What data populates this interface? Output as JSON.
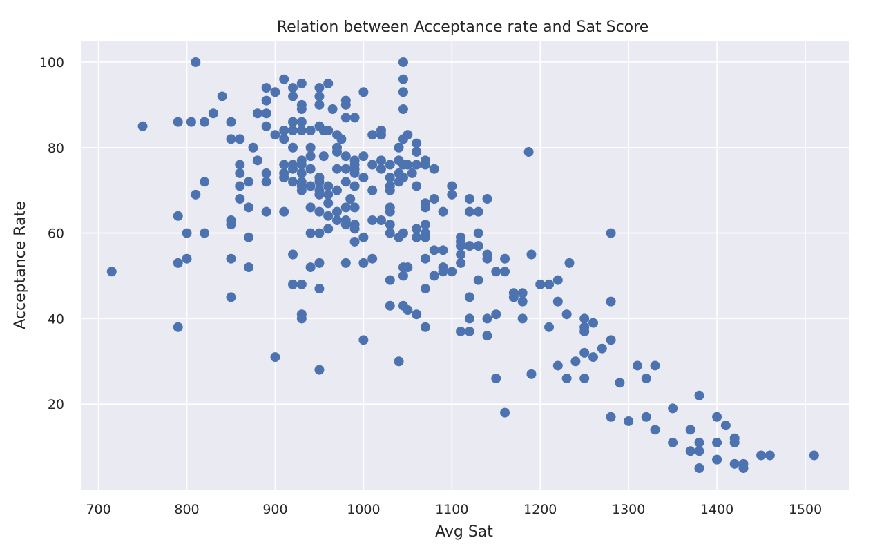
{
  "chart_data": {
    "type": "scatter",
    "title": "Relation between Acceptance rate and Sat Score",
    "xlabel": "Avg Sat",
    "ylabel": "Acceptance Rate",
    "xlim": [
      680,
      1550
    ],
    "ylim": [
      0,
      105
    ],
    "xticks": [
      700,
      800,
      900,
      1000,
      1100,
      1200,
      1300,
      1400,
      1500
    ],
    "yticks": [
      20,
      40,
      60,
      80,
      100
    ],
    "grid": true,
    "background": "#eaeaf2",
    "point_color": "#4c72b0",
    "points": [
      [
        715,
        51
      ],
      [
        750,
        85
      ],
      [
        790,
        86
      ],
      [
        790,
        64
      ],
      [
        790,
        53
      ],
      [
        790,
        38
      ],
      [
        800,
        60
      ],
      [
        800,
        54
      ],
      [
        805,
        86
      ],
      [
        810,
        100
      ],
      [
        810,
        69
      ],
      [
        820,
        86
      ],
      [
        820,
        72
      ],
      [
        820,
        60
      ],
      [
        830,
        88
      ],
      [
        840,
        92
      ],
      [
        850,
        86
      ],
      [
        850,
        82
      ],
      [
        850,
        63
      ],
      [
        850,
        62
      ],
      [
        850,
        54
      ],
      [
        850,
        45
      ],
      [
        860,
        82
      ],
      [
        860,
        76
      ],
      [
        860,
        74
      ],
      [
        860,
        71
      ],
      [
        860,
        68
      ],
      [
        870,
        72
      ],
      [
        870,
        66
      ],
      [
        870,
        59
      ],
      [
        870,
        52
      ],
      [
        875,
        80
      ],
      [
        880,
        88
      ],
      [
        880,
        77
      ],
      [
        890,
        94
      ],
      [
        890,
        91
      ],
      [
        890,
        88
      ],
      [
        890,
        85
      ],
      [
        890,
        74
      ],
      [
        890,
        72
      ],
      [
        890,
        65
      ],
      [
        900,
        93
      ],
      [
        900,
        83
      ],
      [
        900,
        31
      ],
      [
        910,
        96
      ],
      [
        910,
        84
      ],
      [
        910,
        82
      ],
      [
        910,
        76
      ],
      [
        910,
        74
      ],
      [
        910,
        73
      ],
      [
        910,
        65
      ],
      [
        920,
        94
      ],
      [
        920,
        92
      ],
      [
        920,
        86
      ],
      [
        920,
        84
      ],
      [
        920,
        80
      ],
      [
        920,
        76
      ],
      [
        920,
        75
      ],
      [
        920,
        72
      ],
      [
        920,
        55
      ],
      [
        920,
        48
      ],
      [
        930,
        95
      ],
      [
        930,
        90
      ],
      [
        930,
        89
      ],
      [
        930,
        86
      ],
      [
        930,
        84
      ],
      [
        930,
        77
      ],
      [
        930,
        76
      ],
      [
        930,
        74
      ],
      [
        930,
        72
      ],
      [
        930,
        71
      ],
      [
        930,
        70
      ],
      [
        930,
        48
      ],
      [
        930,
        41
      ],
      [
        930,
        40
      ],
      [
        940,
        84
      ],
      [
        940,
        80
      ],
      [
        940,
        78
      ],
      [
        940,
        75
      ],
      [
        940,
        71
      ],
      [
        940,
        66
      ],
      [
        940,
        60
      ],
      [
        940,
        52
      ],
      [
        950,
        94
      ],
      [
        950,
        92
      ],
      [
        950,
        90
      ],
      [
        950,
        85
      ],
      [
        950,
        73
      ],
      [
        950,
        72
      ],
      [
        950,
        70
      ],
      [
        950,
        69
      ],
      [
        950,
        65
      ],
      [
        950,
        60
      ],
      [
        950,
        53
      ],
      [
        950,
        47
      ],
      [
        950,
        28
      ],
      [
        955,
        84
      ],
      [
        955,
        78
      ],
      [
        960,
        95
      ],
      [
        960,
        84
      ],
      [
        960,
        71
      ],
      [
        960,
        69
      ],
      [
        960,
        67
      ],
      [
        960,
        64
      ],
      [
        960,
        61
      ],
      [
        965,
        89
      ],
      [
        970,
        83
      ],
      [
        970,
        80
      ],
      [
        970,
        79
      ],
      [
        970,
        75
      ],
      [
        970,
        70
      ],
      [
        970,
        65
      ],
      [
        970,
        63
      ],
      [
        975,
        82
      ],
      [
        980,
        91
      ],
      [
        980,
        90
      ],
      [
        980,
        87
      ],
      [
        980,
        78
      ],
      [
        980,
        75
      ],
      [
        980,
        72
      ],
      [
        980,
        66
      ],
      [
        980,
        63
      ],
      [
        980,
        62
      ],
      [
        980,
        53
      ],
      [
        985,
        68
      ],
      [
        990,
        87
      ],
      [
        990,
        77
      ],
      [
        990,
        76
      ],
      [
        990,
        75
      ],
      [
        990,
        74
      ],
      [
        990,
        71
      ],
      [
        990,
        66
      ],
      [
        990,
        62
      ],
      [
        990,
        61
      ],
      [
        990,
        58
      ],
      [
        1000,
        93
      ],
      [
        1000,
        78
      ],
      [
        1000,
        73
      ],
      [
        1000,
        59
      ],
      [
        1000,
        53
      ],
      [
        1000,
        35
      ],
      [
        1010,
        83
      ],
      [
        1010,
        76
      ],
      [
        1010,
        70
      ],
      [
        1010,
        63
      ],
      [
        1010,
        54
      ],
      [
        1020,
        84
      ],
      [
        1020,
        83
      ],
      [
        1020,
        77
      ],
      [
        1020,
        75
      ],
      [
        1020,
        63
      ],
      [
        1030,
        76
      ],
      [
        1030,
        73
      ],
      [
        1030,
        71
      ],
      [
        1030,
        70
      ],
      [
        1030,
        66
      ],
      [
        1030,
        65
      ],
      [
        1030,
        62
      ],
      [
        1030,
        60
      ],
      [
        1030,
        49
      ],
      [
        1030,
        43
      ],
      [
        1040,
        80
      ],
      [
        1040,
        77
      ],
      [
        1040,
        74
      ],
      [
        1040,
        72
      ],
      [
        1040,
        59
      ],
      [
        1040,
        30
      ],
      [
        1045,
        100
      ],
      [
        1045,
        96
      ],
      [
        1045,
        93
      ],
      [
        1045,
        89
      ],
      [
        1045,
        82
      ],
      [
        1045,
        76
      ],
      [
        1045,
        73
      ],
      [
        1045,
        60
      ],
      [
        1045,
        52
      ],
      [
        1045,
        50
      ],
      [
        1045,
        43
      ],
      [
        1050,
        83
      ],
      [
        1050,
        76
      ],
      [
        1050,
        52
      ],
      [
        1050,
        42
      ],
      [
        1055,
        74
      ],
      [
        1060,
        81
      ],
      [
        1060,
        79
      ],
      [
        1060,
        76
      ],
      [
        1060,
        71
      ],
      [
        1060,
        61
      ],
      [
        1060,
        59
      ],
      [
        1060,
        41
      ],
      [
        1070,
        77
      ],
      [
        1070,
        76
      ],
      [
        1070,
        67
      ],
      [
        1070,
        66
      ],
      [
        1070,
        62
      ],
      [
        1070,
        60
      ],
      [
        1070,
        59
      ],
      [
        1070,
        54
      ],
      [
        1070,
        47
      ],
      [
        1070,
        38
      ],
      [
        1080,
        75
      ],
      [
        1080,
        68
      ],
      [
        1080,
        56
      ],
      [
        1080,
        50
      ],
      [
        1090,
        65
      ],
      [
        1090,
        56
      ],
      [
        1090,
        52
      ],
      [
        1090,
        51
      ],
      [
        1100,
        71
      ],
      [
        1100,
        69
      ],
      [
        1100,
        51
      ],
      [
        1110,
        59
      ],
      [
        1110,
        58
      ],
      [
        1110,
        57
      ],
      [
        1110,
        55
      ],
      [
        1110,
        53
      ],
      [
        1110,
        37
      ],
      [
        1120,
        68
      ],
      [
        1120,
        65
      ],
      [
        1120,
        57
      ],
      [
        1120,
        45
      ],
      [
        1120,
        40
      ],
      [
        1120,
        37
      ],
      [
        1130,
        65
      ],
      [
        1130,
        60
      ],
      [
        1130,
        57
      ],
      [
        1130,
        49
      ],
      [
        1140,
        68
      ],
      [
        1140,
        55
      ],
      [
        1140,
        54
      ],
      [
        1140,
        40
      ],
      [
        1140,
        36
      ],
      [
        1150,
        51
      ],
      [
        1150,
        41
      ],
      [
        1150,
        26
      ],
      [
        1160,
        54
      ],
      [
        1160,
        51
      ],
      [
        1160,
        18
      ],
      [
        1170,
        46
      ],
      [
        1170,
        45
      ],
      [
        1180,
        46
      ],
      [
        1180,
        44
      ],
      [
        1180,
        40
      ],
      [
        1187,
        79
      ],
      [
        1190,
        55
      ],
      [
        1190,
        27
      ],
      [
        1200,
        48
      ],
      [
        1210,
        48
      ],
      [
        1210,
        38
      ],
      [
        1220,
        49
      ],
      [
        1220,
        44
      ],
      [
        1220,
        29
      ],
      [
        1230,
        41
      ],
      [
        1230,
        26
      ],
      [
        1233,
        53
      ],
      [
        1240,
        30
      ],
      [
        1250,
        40
      ],
      [
        1250,
        38
      ],
      [
        1250,
        37
      ],
      [
        1250,
        32
      ],
      [
        1250,
        26
      ],
      [
        1260,
        39
      ],
      [
        1260,
        31
      ],
      [
        1270,
        33
      ],
      [
        1280,
        60
      ],
      [
        1280,
        44
      ],
      [
        1280,
        35
      ],
      [
        1280,
        17
      ],
      [
        1290,
        25
      ],
      [
        1300,
        16
      ],
      [
        1310,
        29
      ],
      [
        1320,
        26
      ],
      [
        1320,
        17
      ],
      [
        1330,
        29
      ],
      [
        1330,
        14
      ],
      [
        1350,
        19
      ],
      [
        1350,
        11
      ],
      [
        1370,
        14
      ],
      [
        1370,
        9
      ],
      [
        1380,
        22
      ],
      [
        1380,
        11
      ],
      [
        1380,
        9
      ],
      [
        1380,
        5
      ],
      [
        1400,
        17
      ],
      [
        1400,
        11
      ],
      [
        1400,
        7
      ],
      [
        1410,
        15
      ],
      [
        1420,
        12
      ],
      [
        1420,
        11
      ],
      [
        1420,
        6
      ],
      [
        1430,
        6
      ],
      [
        1430,
        5
      ],
      [
        1450,
        8
      ],
      [
        1460,
        8
      ],
      [
        1510,
        8
      ]
    ]
  }
}
